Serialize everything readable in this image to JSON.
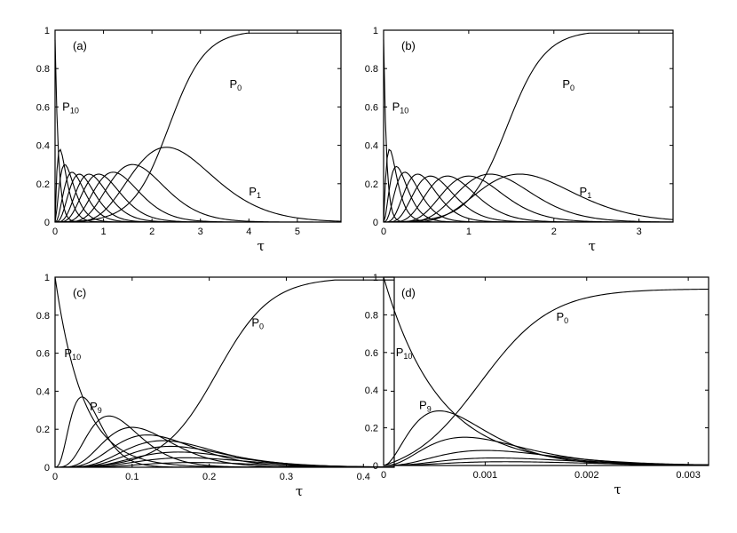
{
  "chart_data": [
    {
      "panel": "(a)",
      "type": "line",
      "xlabel": "τ",
      "xlim": [
        0,
        5.9
      ],
      "ylim": [
        0,
        1
      ],
      "xticks": [
        "0",
        "1",
        "2",
        "3",
        "4",
        "5"
      ],
      "yticks": [
        "0",
        "0.2",
        "0.4",
        "0.6",
        "0.8",
        "1"
      ],
      "annotations": [
        {
          "base": "P",
          "sub": "10",
          "x": 0.15,
          "y": 0.58
        },
        {
          "base": "P",
          "sub": "0",
          "x": 3.6,
          "y": 0.7
        },
        {
          "base": "P",
          "sub": "1",
          "x": 4.0,
          "y": 0.14
        }
      ],
      "series": [
        {
          "peak_tau": 0.0,
          "peak": 0.95,
          "width": 0.12
        },
        {
          "peak_tau": 0.1,
          "peak": 0.38,
          "width": 0.3
        },
        {
          "peak_tau": 0.2,
          "peak": 0.3,
          "width": 0.35
        },
        {
          "peak_tau": 0.35,
          "peak": 0.26,
          "width": 0.4
        },
        {
          "peak_tau": 0.5,
          "peak": 0.25,
          "width": 0.42
        },
        {
          "peak_tau": 0.7,
          "peak": 0.25,
          "width": 0.45
        },
        {
          "peak_tau": 0.9,
          "peak": 0.25,
          "width": 0.5
        },
        {
          "peak_tau": 1.2,
          "peak": 0.26,
          "width": 0.55
        },
        {
          "peak_tau": 1.6,
          "peak": 0.3,
          "width": 0.65
        },
        {
          "peak_tau": 2.3,
          "peak": 0.39,
          "width": 0.95
        }
      ],
      "p0": {
        "center": 2.35,
        "scale": 0.75
      }
    },
    {
      "panel": "(b)",
      "type": "line",
      "xlabel": "τ",
      "xlim": [
        0,
        3.4
      ],
      "ylim": [
        0,
        1
      ],
      "xticks": [
        "0",
        "1",
        "2",
        "3"
      ],
      "yticks": [
        "0",
        "0.2",
        "0.4",
        "0.6",
        "0.8",
        "1"
      ],
      "annotations": [
        {
          "base": "P",
          "sub": "10",
          "x": 0.1,
          "y": 0.58
        },
        {
          "base": "P",
          "sub": "0",
          "x": 2.1,
          "y": 0.7
        },
        {
          "base": "P",
          "sub": "1",
          "x": 2.3,
          "y": 0.14
        }
      ],
      "series": [
        {
          "peak_tau": 0.0,
          "peak": 0.95,
          "width": 0.06
        },
        {
          "peak_tau": 0.07,
          "peak": 0.38,
          "width": 0.18
        },
        {
          "peak_tau": 0.15,
          "peak": 0.29,
          "width": 0.22
        },
        {
          "peak_tau": 0.25,
          "peak": 0.26,
          "width": 0.25
        },
        {
          "peak_tau": 0.4,
          "peak": 0.25,
          "width": 0.27
        },
        {
          "peak_tau": 0.55,
          "peak": 0.24,
          "width": 0.3
        },
        {
          "peak_tau": 0.75,
          "peak": 0.24,
          "width": 0.33
        },
        {
          "peak_tau": 1.0,
          "peak": 0.24,
          "width": 0.38
        },
        {
          "peak_tau": 1.25,
          "peak": 0.25,
          "width": 0.45
        },
        {
          "peak_tau": 1.6,
          "peak": 0.25,
          "width": 0.6
        }
      ],
      "p0": {
        "center": 1.45,
        "scale": 0.45
      }
    },
    {
      "panel": "(c)",
      "type": "line",
      "xlabel": "τ",
      "xlim": [
        0,
        0.44
      ],
      "ylim": [
        0,
        1
      ],
      "xticks": [
        "0",
        "0.1",
        "0.2",
        "0.3",
        "0.4"
      ],
      "yticks": [
        "0",
        "0.2",
        "0.4",
        "0.6",
        "0.8",
        "1"
      ],
      "annotations": [
        {
          "base": "P",
          "sub": "10",
          "x": 0.012,
          "y": 0.58
        },
        {
          "base": "P",
          "sub": "9",
          "x": 0.045,
          "y": 0.3
        },
        {
          "base": "P",
          "sub": "0",
          "x": 0.255,
          "y": 0.74
        }
      ],
      "series": [
        {
          "peak_tau": 0.0,
          "peak": 1.0,
          "width": 0.06
        },
        {
          "peak_tau": 0.035,
          "peak": 0.37,
          "width": 0.035
        },
        {
          "peak_tau": 0.07,
          "peak": 0.27,
          "width": 0.05
        },
        {
          "peak_tau": 0.1,
          "peak": 0.21,
          "width": 0.06
        },
        {
          "peak_tau": 0.12,
          "peak": 0.17,
          "width": 0.07
        },
        {
          "peak_tau": 0.14,
          "peak": 0.14,
          "width": 0.075
        },
        {
          "peak_tau": 0.15,
          "peak": 0.11,
          "width": 0.08
        },
        {
          "peak_tau": 0.16,
          "peak": 0.08,
          "width": 0.085
        },
        {
          "peak_tau": 0.17,
          "peak": 0.05,
          "width": 0.09
        },
        {
          "peak_tau": 0.18,
          "peak": 0.025,
          "width": 0.095
        }
      ],
      "p0": {
        "center": 0.21,
        "scale": 0.07
      }
    },
    {
      "panel": "(d)",
      "type": "line",
      "xlabel": "τ",
      "xlim": [
        0,
        0.0032
      ],
      "ylim": [
        0,
        1
      ],
      "xticks": [
        "0",
        "0.001",
        "0.002",
        "0.003"
      ],
      "yticks": [
        "0",
        "0.2",
        "0.4",
        "0.6",
        "0.8",
        "1"
      ],
      "annotations": [
        {
          "base": "P",
          "sub": "10",
          "x": 0.00012,
          "y": 0.58
        },
        {
          "base": "P",
          "sub": "9",
          "x": 0.00035,
          "y": 0.3
        },
        {
          "base": "P",
          "sub": "0",
          "x": 0.0017,
          "y": 0.77
        }
      ],
      "series": [
        {
          "peak_tau": 0.0,
          "peak": 1.0,
          "width": 0.0009
        },
        {
          "peak_tau": 0.00055,
          "peak": 0.29,
          "width": 0.0008
        },
        {
          "peak_tau": 0.0008,
          "peak": 0.15,
          "width": 0.0009
        },
        {
          "peak_tau": 0.001,
          "peak": 0.08,
          "width": 0.001
        },
        {
          "peak_tau": 0.0011,
          "peak": 0.04,
          "width": 0.0011
        },
        {
          "peak_tau": 0.0012,
          "peak": 0.02,
          "width": 0.0012
        }
      ],
      "p0": {
        "center": 0.00095,
        "scale": 0.0007
      }
    }
  ]
}
